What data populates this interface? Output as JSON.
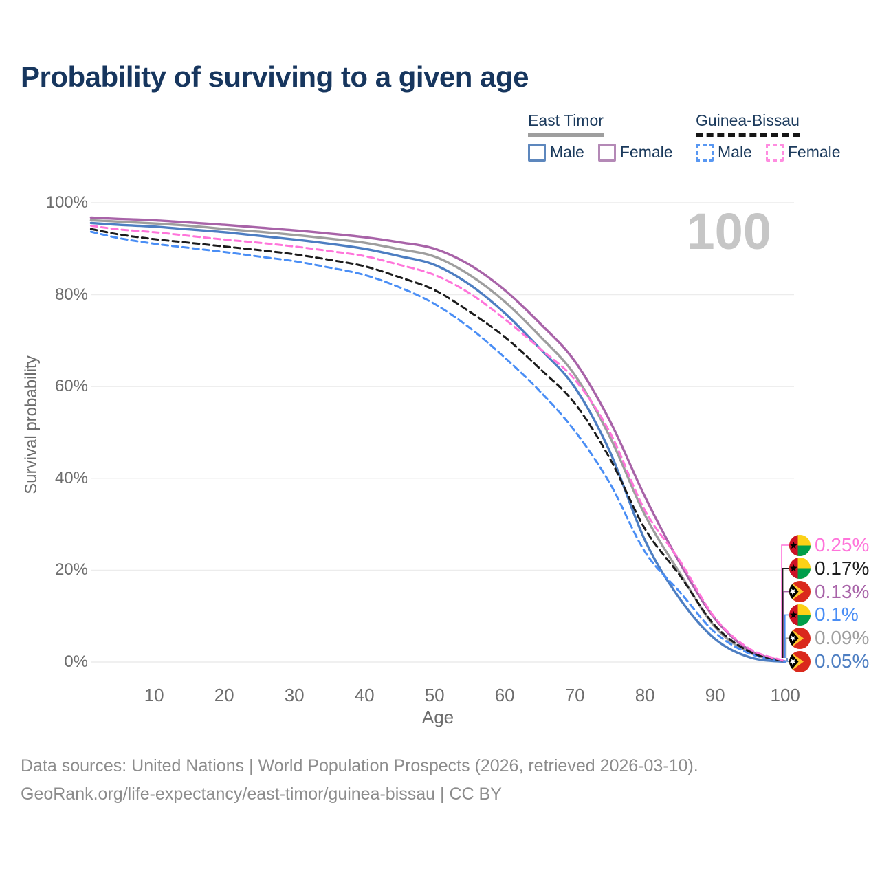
{
  "title": "Probability of surviving to a given age",
  "watermark": "100",
  "legend": {
    "groups": [
      {
        "name": "East Timor",
        "line_style": "solid",
        "line_color": "#9e9e9e",
        "entries": [
          {
            "label": "Male",
            "box_color": "#5d87bd"
          },
          {
            "label": "Female",
            "box_color": "#b489b6"
          }
        ]
      },
      {
        "name": "Guinea-Bissau",
        "line_style": "dashed",
        "line_color": "#161616",
        "entries": [
          {
            "label": "Male",
            "box_color": "#5897f2"
          },
          {
            "label": "Female",
            "box_color": "#ff8ce0"
          }
        ]
      }
    ]
  },
  "chart_data": {
    "type": "line",
    "title": "Probability of surviving to a given age",
    "xlabel": "Age",
    "ylabel": "Survival probability",
    "xlim": [
      0,
      103
    ],
    "ylim": [
      0,
      100
    ],
    "grid": "horizontal",
    "x_ticks": [
      10,
      20,
      30,
      40,
      50,
      60,
      70,
      80,
      90,
      100
    ],
    "y_ticks": [
      0,
      20,
      40,
      60,
      80,
      100
    ],
    "y_tick_suffix": "%",
    "hover_age": "100",
    "x": [
      1,
      5,
      10,
      15,
      20,
      25,
      30,
      35,
      40,
      45,
      50,
      55,
      60,
      65,
      70,
      75,
      80,
      85,
      90,
      95,
      100
    ],
    "series": [
      {
        "id": "et-all",
        "name": "East Timor",
        "sex": "Both sexes",
        "color": "#9e9e9e",
        "dash": false,
        "values": [
          96.2,
          95.9,
          95.5,
          95.0,
          94.3,
          93.7,
          93.0,
          92.2,
          91.3,
          89.9,
          88.3,
          84.3,
          78.5,
          71.0,
          62.5,
          49.0,
          32.0,
          19.3,
          7.6,
          2.0,
          0.09
        ]
      },
      {
        "id": "et-male",
        "name": "East Timor Male",
        "sex": "Male",
        "color": "#4d7ec2",
        "dash": false,
        "values": [
          95.6,
          95.2,
          94.8,
          94.2,
          93.6,
          92.8,
          92.0,
          91.1,
          90.0,
          88.4,
          86.5,
          82.2,
          76.0,
          68.3,
          59.8,
          45.8,
          26.5,
          13.7,
          5.0,
          1.0,
          0.05
        ]
      },
      {
        "id": "et-female",
        "name": "East Timor Female",
        "sex": "Female",
        "color": "#a863a8",
        "dash": false,
        "values": [
          96.8,
          96.5,
          96.2,
          95.7,
          95.2,
          94.6,
          94.0,
          93.3,
          92.5,
          91.4,
          90.0,
          86.5,
          81.0,
          73.8,
          65.5,
          52.5,
          36.0,
          21.5,
          9.4,
          2.5,
          0.13
        ]
      },
      {
        "id": "gb-male",
        "name": "Guinea-Bissau Male",
        "sex": "Male",
        "color": "#4a8ef5",
        "dash": true,
        "values": [
          93.7,
          92.3,
          91.1,
          90.2,
          89.3,
          88.3,
          87.3,
          85.9,
          84.3,
          81.6,
          78.0,
          72.8,
          66.3,
          59.0,
          50.3,
          38.9,
          24.0,
          15.2,
          6.4,
          1.8,
          0.1
        ]
      },
      {
        "id": "gb-all",
        "name": "Guinea-Bissau",
        "sex": "Both sexes",
        "color": "#1b1b1b",
        "dash": true,
        "values": [
          94.3,
          93.1,
          92.1,
          91.3,
          90.5,
          89.7,
          88.8,
          87.6,
          86.2,
          83.8,
          81.0,
          76.3,
          70.8,
          63.9,
          56.3,
          44.3,
          29.0,
          18.8,
          7.9,
          2.2,
          0.17
        ]
      },
      {
        "id": "gb-female",
        "name": "Guinea-Bissau Female",
        "sex": "Female",
        "color": "#ff74da",
        "dash": true,
        "values": [
          95.0,
          94.2,
          93.6,
          92.8,
          92.0,
          91.3,
          90.5,
          89.5,
          88.4,
          86.5,
          84.3,
          80.3,
          74.7,
          68.3,
          61.5,
          50.0,
          33.0,
          22.0,
          9.6,
          2.8,
          0.25
        ]
      }
    ],
    "end_labels": [
      {
        "series": "gb-female",
        "flag": "guinea-bissau",
        "text": "0.25%"
      },
      {
        "series": "gb-all",
        "flag": "guinea-bissau",
        "text": "0.17%"
      },
      {
        "series": "et-female",
        "flag": "east-timor",
        "text": "0.13%"
      },
      {
        "series": "gb-male",
        "flag": "guinea-bissau",
        "text": "0.1%"
      },
      {
        "series": "et-all",
        "flag": "east-timor",
        "text": "0.09%"
      },
      {
        "series": "et-male",
        "flag": "east-timor",
        "text": "0.05%"
      }
    ]
  },
  "footer": {
    "line1": "Data sources: United Nations | World Population Prospects (2026, retrieved 2026-03-10).",
    "line2": "GeoRank.org/life-expectancy/east-timor/guinea-bissau | CC BY"
  }
}
